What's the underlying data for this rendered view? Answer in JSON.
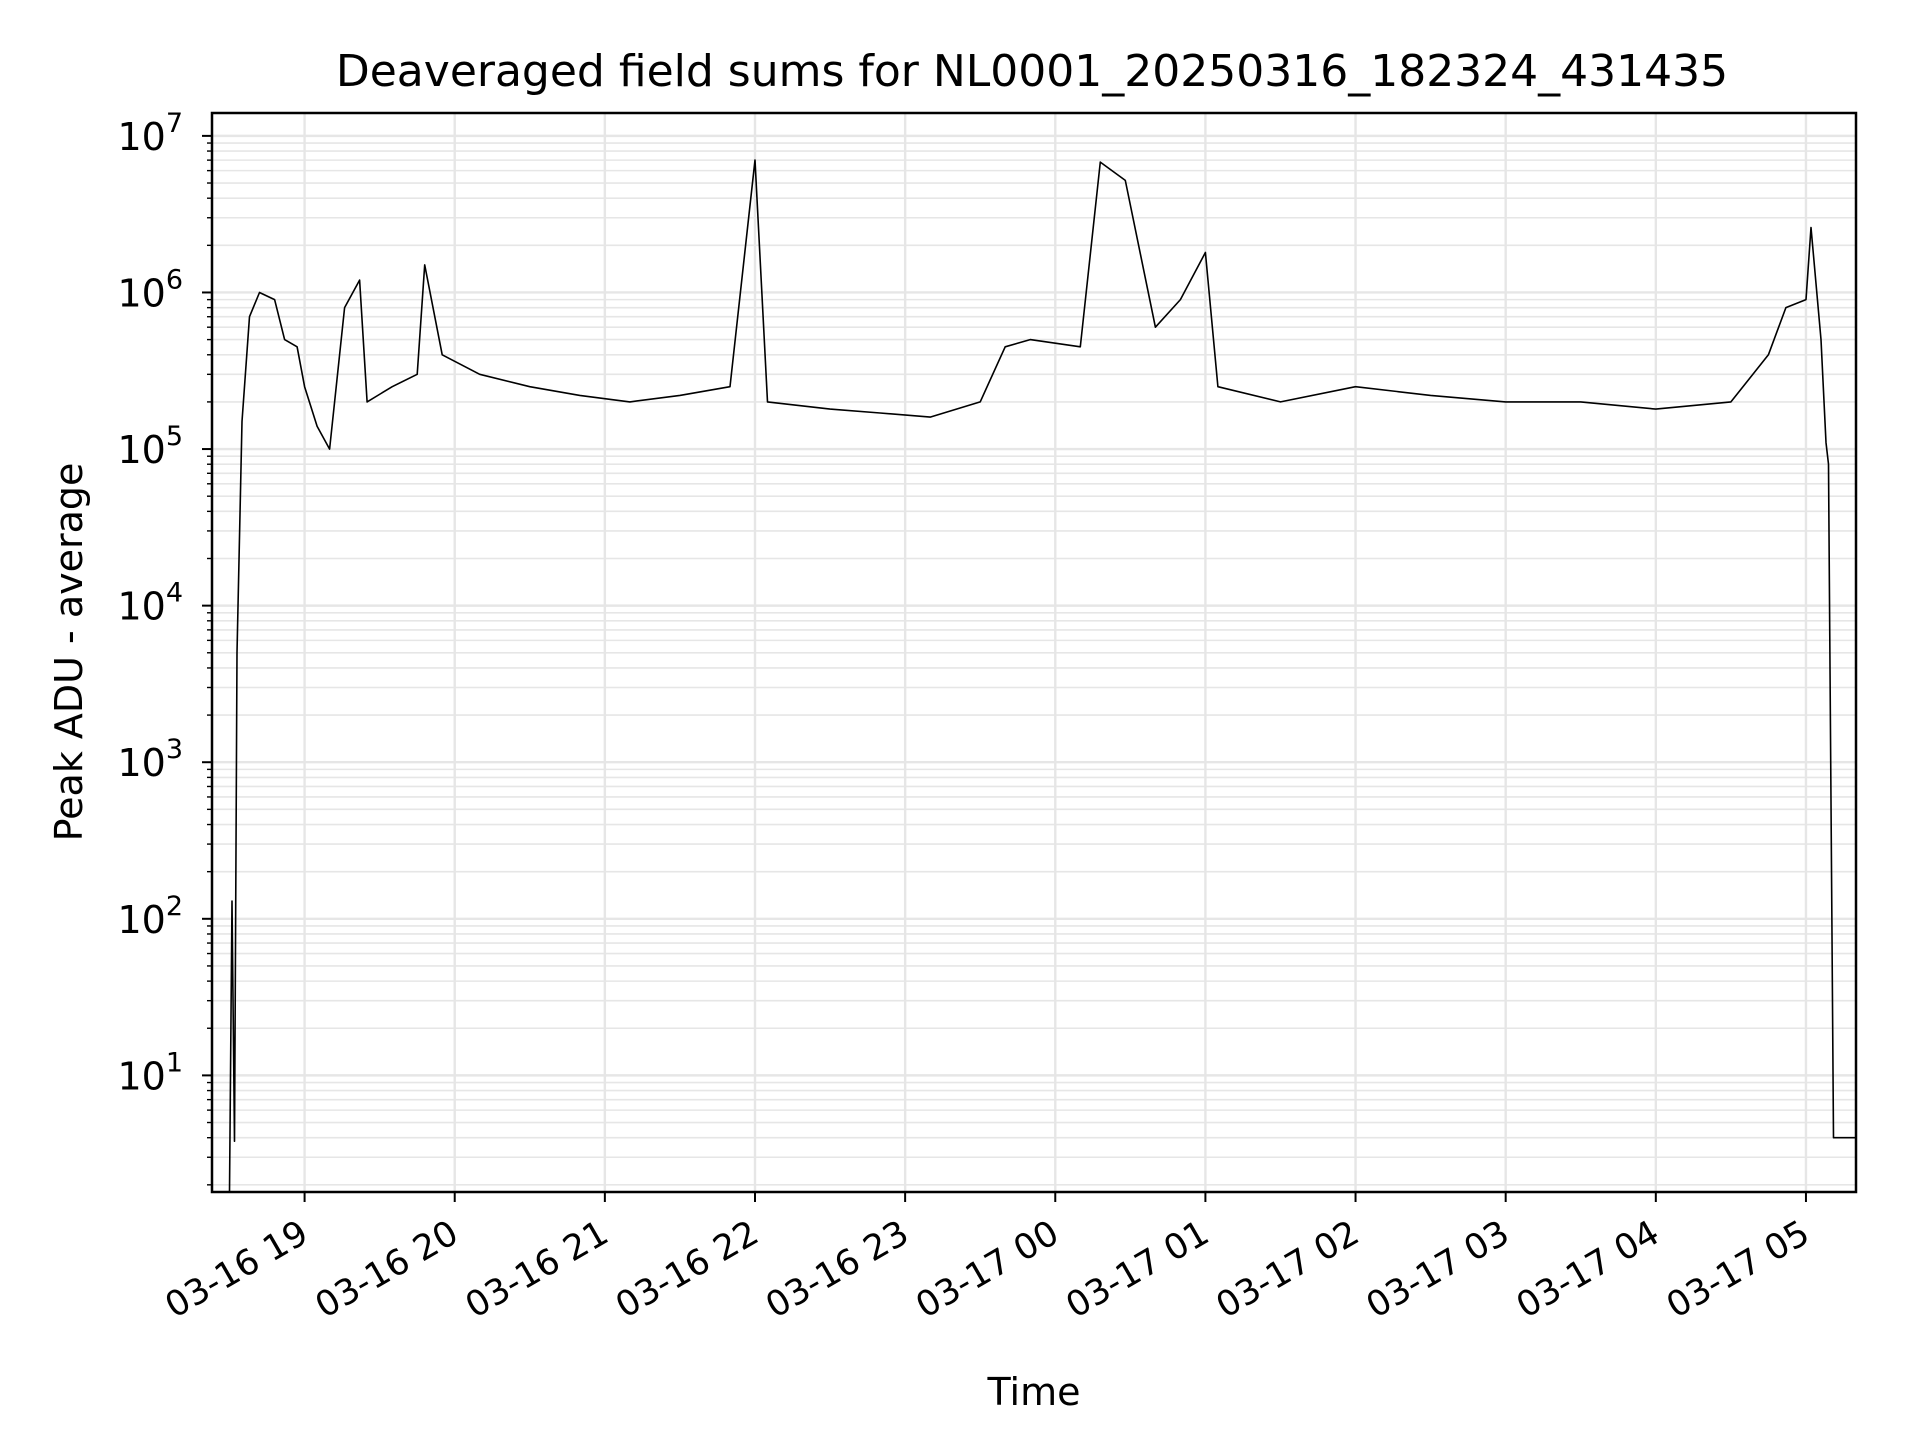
{
  "chart_data": {
    "type": "line",
    "title": "Deaveraged field sums for NL0001_20250316_182324_431435",
    "xlabel": "Time",
    "ylabel": "Peak ADU - average",
    "x_range": [
      "2025-03-16 18:23",
      "2025-03-17 05:20"
    ],
    "y_scale": "log",
    "ylim": [
      1.8,
      14000000
    ],
    "grid": true,
    "line_color": "#000000",
    "grid_color": "#e6e6e6",
    "x_ticks": [
      {
        "label": "03-16 19",
        "time": "2025-03-16 19:00"
      },
      {
        "label": "03-16 20",
        "time": "2025-03-16 20:00"
      },
      {
        "label": "03-16 21",
        "time": "2025-03-16 21:00"
      },
      {
        "label": "03-16 22",
        "time": "2025-03-16 22:00"
      },
      {
        "label": "03-16 23",
        "time": "2025-03-16 23:00"
      },
      {
        "label": "03-17 00",
        "time": "2025-03-17 00:00"
      },
      {
        "label": "03-17 01",
        "time": "2025-03-17 01:00"
      },
      {
        "label": "03-17 02",
        "time": "2025-03-17 02:00"
      },
      {
        "label": "03-17 03",
        "time": "2025-03-17 03:00"
      },
      {
        "label": "03-17 04",
        "time": "2025-03-17 04:00"
      },
      {
        "label": "03-17 05",
        "time": "2025-03-17 05:00"
      }
    ],
    "y_ticks": [
      {
        "base": "10",
        "exp": "1",
        "value": 10
      },
      {
        "base": "10",
        "exp": "2",
        "value": 100
      },
      {
        "base": "10",
        "exp": "3",
        "value": 1000
      },
      {
        "base": "10",
        "exp": "4",
        "value": 10000
      },
      {
        "base": "10",
        "exp": "5",
        "value": 100000
      },
      {
        "base": "10",
        "exp": "6",
        "value": 1000000
      },
      {
        "base": "10",
        "exp": "7",
        "value": 10000000
      }
    ],
    "series": [
      {
        "points": [
          [
            "2025-03-16 18:30",
            1.8
          ],
          [
            "2025-03-16 18:31",
            130
          ],
          [
            "2025-03-16 18:32",
            3.8
          ],
          [
            "2025-03-16 18:33",
            5000
          ],
          [
            "2025-03-16 18:35",
            150000
          ],
          [
            "2025-03-16 18:38",
            700000
          ],
          [
            "2025-03-16 18:42",
            1000000
          ],
          [
            "2025-03-16 18:48",
            900000
          ],
          [
            "2025-03-16 18:52",
            500000
          ],
          [
            "2025-03-16 18:57",
            450000
          ],
          [
            "2025-03-16 19:00",
            250000
          ],
          [
            "2025-03-16 19:05",
            140000
          ],
          [
            "2025-03-16 19:10",
            100000
          ],
          [
            "2025-03-16 19:16",
            800000
          ],
          [
            "2025-03-16 19:22",
            1200000
          ],
          [
            "2025-03-16 19:25",
            200000
          ],
          [
            "2025-03-16 19:35",
            250000
          ],
          [
            "2025-03-16 19:45",
            300000
          ],
          [
            "2025-03-16 19:48",
            1500000
          ],
          [
            "2025-03-16 19:55",
            400000
          ],
          [
            "2025-03-16 20:10",
            300000
          ],
          [
            "2025-03-16 20:30",
            250000
          ],
          [
            "2025-03-16 20:50",
            220000
          ],
          [
            "2025-03-16 21:10",
            200000
          ],
          [
            "2025-03-16 21:30",
            220000
          ],
          [
            "2025-03-16 21:50",
            250000
          ],
          [
            "2025-03-16 22:00",
            7000000
          ],
          [
            "2025-03-16 22:05",
            200000
          ],
          [
            "2025-03-16 22:30",
            180000
          ],
          [
            "2025-03-16 22:50",
            170000
          ],
          [
            "2025-03-16 23:10",
            160000
          ],
          [
            "2025-03-16 23:30",
            200000
          ],
          [
            "2025-03-16 23:40",
            450000
          ],
          [
            "2025-03-16 23:50",
            500000
          ],
          [
            "2025-03-17 00:10",
            450000
          ],
          [
            "2025-03-17 00:18",
            6800000
          ],
          [
            "2025-03-17 00:28",
            5200000
          ],
          [
            "2025-03-17 00:40",
            600000
          ],
          [
            "2025-03-17 00:50",
            900000
          ],
          [
            "2025-03-17 01:00",
            1800000
          ],
          [
            "2025-03-17 01:05",
            250000
          ],
          [
            "2025-03-17 01:30",
            200000
          ],
          [
            "2025-03-17 02:00",
            250000
          ],
          [
            "2025-03-17 02:30",
            220000
          ],
          [
            "2025-03-17 03:00",
            200000
          ],
          [
            "2025-03-17 03:30",
            200000
          ],
          [
            "2025-03-17 04:00",
            180000
          ],
          [
            "2025-03-17 04:30",
            200000
          ],
          [
            "2025-03-17 04:45",
            400000
          ],
          [
            "2025-03-17 04:52",
            800000
          ],
          [
            "2025-03-17 05:00",
            900000
          ],
          [
            "2025-03-17 05:02",
            2600000
          ],
          [
            "2025-03-17 05:06",
            500000
          ],
          [
            "2025-03-17 05:08",
            110000
          ],
          [
            "2025-03-17 05:09",
            80000
          ],
          [
            "2025-03-17 05:11",
            4
          ],
          [
            "2025-03-17 05:20",
            4
          ]
        ]
      }
    ]
  }
}
